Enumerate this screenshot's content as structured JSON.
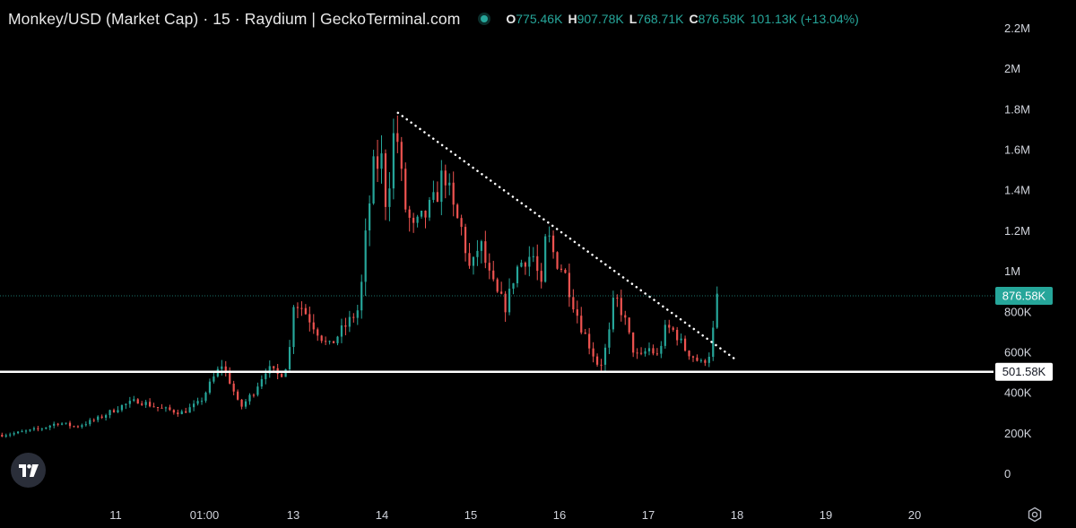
{
  "header": {
    "title": "Monkey/USD (Market Cap) · 15 · Raydium | GeckoTerminal.com",
    "ohlc": [
      {
        "key": "O",
        "value": "775.46K"
      },
      {
        "key": "H",
        "value": "907.78K"
      },
      {
        "key": "L",
        "value": "768.71K"
      },
      {
        "key": "C",
        "value": "876.58K"
      }
    ],
    "change": "101.13K (+13.04%)"
  },
  "colors": {
    "up": "#26a69a",
    "down": "#ef5350",
    "background": "#000000",
    "price_label": "#26a69a"
  },
  "icons": [
    "tradingview-logo-icon",
    "settings-icon"
  ],
  "chart_data": {
    "type": "candlestick",
    "grid": false,
    "ylim": [
      0,
      2200000
    ],
    "y_ticks": [
      {
        "value": 0,
        "label": "0"
      },
      {
        "value": 200000,
        "label": "200K"
      },
      {
        "value": 400000,
        "label": "400K"
      },
      {
        "value": 600000,
        "label": "600K"
      },
      {
        "value": 800000,
        "label": "800K"
      },
      {
        "value": 1000000,
        "label": "1M"
      },
      {
        "value": 1200000,
        "label": "1.2M"
      },
      {
        "value": 1400000,
        "label": "1.4M"
      },
      {
        "value": 1600000,
        "label": "1.6M"
      },
      {
        "value": 1800000,
        "label": "1.8M"
      },
      {
        "value": 2000000,
        "label": "2M"
      },
      {
        "value": 2200000,
        "label": "2.2M"
      }
    ],
    "x_ticks": [
      {
        "day": 11,
        "label": "11"
      },
      {
        "day": 12,
        "label": "01:00"
      },
      {
        "day": 13,
        "label": "13"
      },
      {
        "day": 14,
        "label": "14"
      },
      {
        "day": 15,
        "label": "15"
      },
      {
        "day": 16,
        "label": "16"
      },
      {
        "day": 17,
        "label": "17"
      },
      {
        "day": 18,
        "label": "18"
      },
      {
        "day": 19,
        "label": "19"
      },
      {
        "day": 20,
        "label": "20"
      }
    ],
    "xlim_days": [
      9.72,
      21.45
    ],
    "price_series": [
      [
        9.72,
        190000
      ],
      [
        9.9,
        200000
      ],
      [
        10.15,
        220000
      ],
      [
        10.35,
        250000
      ],
      [
        10.55,
        230000
      ],
      [
        10.8,
        270000
      ],
      [
        11.05,
        330000
      ],
      [
        11.25,
        360000
      ],
      [
        11.5,
        320000
      ],
      [
        11.75,
        300000
      ],
      [
        11.95,
        350000
      ],
      [
        12.1,
        470000
      ],
      [
        12.2,
        540000
      ],
      [
        12.3,
        440000
      ],
      [
        12.4,
        320000
      ],
      [
        12.55,
        400000
      ],
      [
        12.7,
        520000
      ],
      [
        12.85,
        480000
      ],
      [
        12.95,
        560000
      ],
      [
        13.0,
        850000
      ],
      [
        13.1,
        820000
      ],
      [
        13.25,
        720000
      ],
      [
        13.4,
        620000
      ],
      [
        13.5,
        680000
      ],
      [
        13.65,
        760000
      ],
      [
        13.75,
        820000
      ],
      [
        13.8,
        1100000
      ],
      [
        13.9,
        1500000
      ],
      [
        14.0,
        1550000
      ],
      [
        14.05,
        1300000
      ],
      [
        14.15,
        1750000
      ],
      [
        14.25,
        1330000
      ],
      [
        14.35,
        1200000
      ],
      [
        14.5,
        1280000
      ],
      [
        14.6,
        1350000
      ],
      [
        14.7,
        1500000
      ],
      [
        14.8,
        1300000
      ],
      [
        14.9,
        1200000
      ],
      [
        15.0,
        980000
      ],
      [
        15.1,
        1150000
      ],
      [
        15.2,
        980000
      ],
      [
        15.3,
        880000
      ],
      [
        15.4,
        820000
      ],
      [
        15.5,
        1000000
      ],
      [
        15.6,
        1060000
      ],
      [
        15.7,
        1080000
      ],
      [
        15.8,
        900000
      ],
      [
        15.85,
        1200000
      ],
      [
        15.95,
        1060000
      ],
      [
        16.05,
        1000000
      ],
      [
        16.15,
        850000
      ],
      [
        16.25,
        720000
      ],
      [
        16.35,
        620000
      ],
      [
        16.45,
        520000
      ],
      [
        16.55,
        660000
      ],
      [
        16.62,
        880000
      ],
      [
        16.72,
        780000
      ],
      [
        16.82,
        620000
      ],
      [
        16.9,
        560000
      ],
      [
        17.0,
        620000
      ],
      [
        17.1,
        580000
      ],
      [
        17.2,
        720000
      ],
      [
        17.3,
        700000
      ],
      [
        17.4,
        620000
      ],
      [
        17.5,
        580000
      ],
      [
        17.6,
        540000
      ],
      [
        17.7,
        600000
      ],
      [
        17.78,
        876580
      ]
    ],
    "annotations": [
      {
        "type": "horizontal_line",
        "value": 501580,
        "label": "501.58K",
        "color": "#ffffff"
      },
      {
        "type": "dotted_trendline",
        "from": [
          14.18,
          1780000
        ],
        "to": [
          17.99,
          560000
        ],
        "color": "#ffffff"
      },
      {
        "type": "last_price",
        "value": 876580,
        "label": "876.58K",
        "color": "#26a69a"
      }
    ]
  }
}
